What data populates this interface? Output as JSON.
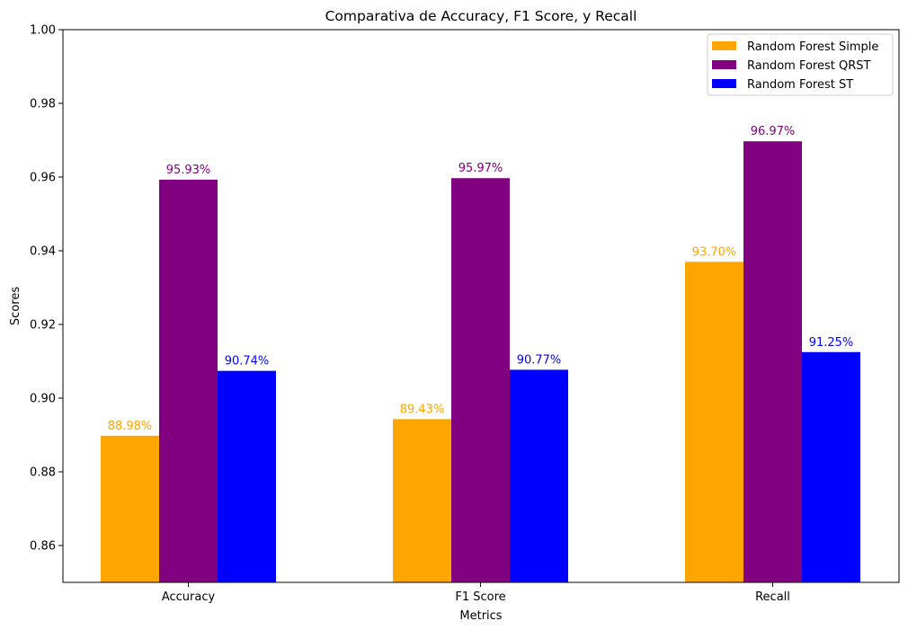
{
  "chart_data": {
    "type": "bar",
    "title": "Comparativa de Accuracy, F1 Score, y Recall",
    "xlabel": "Metrics",
    "ylabel": "Scores",
    "categories": [
      "Accuracy",
      "F1 Score",
      "Recall"
    ],
    "ylim": [
      0.85,
      1.0
    ],
    "yticks": [
      "0.86",
      "0.88",
      "0.90",
      "0.92",
      "0.94",
      "0.96",
      "0.98",
      "1.00"
    ],
    "series": [
      {
        "name": "Random Forest Simple",
        "color": "#ffa500",
        "values": [
          0.8898,
          0.8943,
          0.937
        ],
        "labels": [
          "88.98%",
          "89.43%",
          "93.70%"
        ]
      },
      {
        "name": "Random Forest QRST",
        "color": "#800080",
        "values": [
          0.9593,
          0.9597,
          0.9697
        ],
        "labels": [
          "95.93%",
          "95.97%",
          "96.97%"
        ]
      },
      {
        "name": "Random Forest ST",
        "color": "#0000ff",
        "values": [
          0.9074,
          0.9077,
          0.9125
        ],
        "labels": [
          "90.74%",
          "90.77%",
          "91.25%"
        ]
      }
    ],
    "grid": false,
    "legend_position": "top-right"
  }
}
